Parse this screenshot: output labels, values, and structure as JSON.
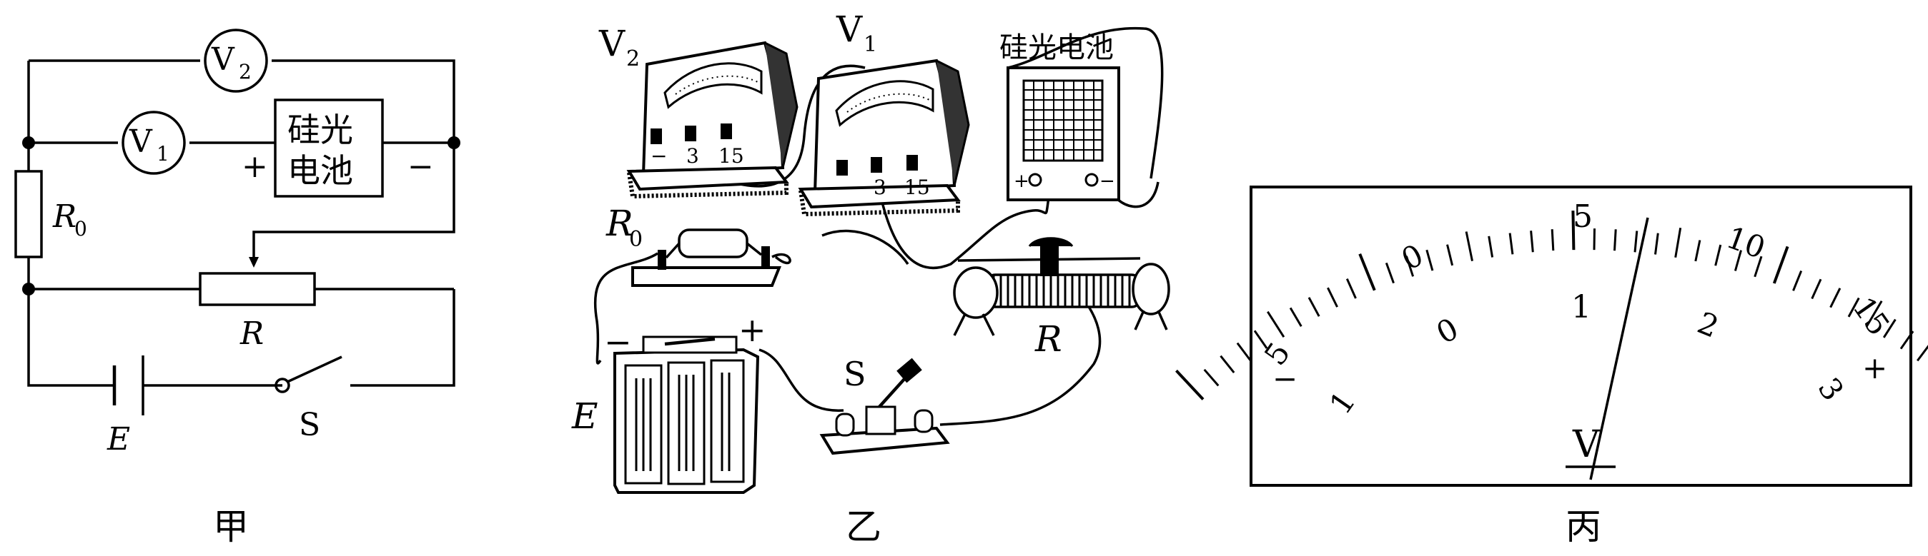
{
  "captions": {
    "jia": "甲",
    "yi": "乙",
    "bing": "丙"
  },
  "circuit": {
    "v2": "V",
    "v2_sub": "2",
    "v1": "V",
    "v1_sub": "1",
    "cell_line1": "硅光",
    "cell_line2": "电池",
    "plus": "+",
    "minus": "−",
    "r0": "R",
    "r0_sub": "0",
    "r": "R",
    "e": "E",
    "s": "S"
  },
  "apparatus": {
    "v2": "V",
    "v2_sub": "2",
    "v1": "V",
    "v1_sub": "1",
    "cell_title": "硅光电池",
    "terminal_minus": "−",
    "terminal_3": "3",
    "terminal_15": "15",
    "r0": "R",
    "r0_sub": "0",
    "battery_minus": "−",
    "battery_plus": "+",
    "e": "E",
    "s": "S",
    "r": "R",
    "cell_plus": "+",
    "cell_minus": "−"
  },
  "meter": {
    "upper_scale": [
      "5",
      "0",
      "5",
      "10",
      "15"
    ],
    "lower_scale": [
      "1",
      "0",
      "1",
      "2",
      "3"
    ],
    "unit": "V",
    "left_sign": "−",
    "right_sign": "+",
    "pointer_value_lower": 1.2
  }
}
